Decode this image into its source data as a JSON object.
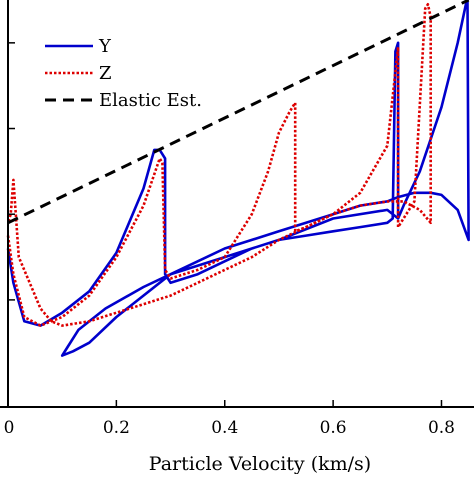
{
  "chart_data": {
    "type": "line",
    "title": "",
    "xlabel": "Particle Velocity (km/s)",
    "ylabel": "",
    "xlim": [
      0,
      0.86
    ],
    "ylim": [
      -0.5,
      9.0
    ],
    "xticks": [
      0,
      0.2,
      0.4,
      0.6,
      0.8
    ],
    "xtick_labels": [
      "0",
      "0.2",
      "0.4",
      "0.6",
      "0.8"
    ],
    "yticks": [
      2,
      4,
      6,
      8
    ],
    "ytick_labels": [
      "",
      "",
      "",
      ""
    ],
    "grid": false,
    "legend_position": "top-left",
    "series": [
      {
        "name": "Y",
        "color": "#0000cc",
        "style": "solid",
        "x": [
          0,
          0.01,
          0.03,
          0.06,
          0.1,
          0.15,
          0.2,
          0.25,
          0.27,
          0.28,
          0.285,
          0.29,
          0.29,
          0.3,
          0.35,
          0.4,
          0.45,
          0.5,
          0.55,
          0.6,
          0.65,
          0.7,
          0.71,
          0.715,
          0.72,
          0.72,
          0.73,
          0.76,
          0.8,
          0.83,
          0.845,
          0.848,
          0.85,
          0.85,
          0.83,
          0.8,
          0.78,
          0.75,
          0.72,
          0.7,
          0.65,
          0.6,
          0.5,
          0.4,
          0.3,
          0.2,
          0.15,
          0.12,
          0.1,
          0.11,
          0.13,
          0.18,
          0.25,
          0.3,
          0.4,
          0.5,
          0.6,
          0.7,
          0.72
        ],
        "y": [
          3.2,
          2.4,
          1.5,
          1.4,
          1.7,
          2.2,
          3.1,
          4.6,
          5.5,
          5.5,
          5.4,
          5.3,
          2.6,
          2.4,
          2.6,
          2.9,
          3.2,
          3.4,
          3.5,
          3.6,
          3.7,
          3.8,
          3.9,
          7.8,
          8.0,
          3.9,
          4.2,
          5.0,
          6.5,
          8.0,
          8.9,
          9.0,
          3.4,
          3.4,
          4.1,
          4.45,
          4.5,
          4.5,
          4.4,
          4.3,
          4.2,
          4.0,
          3.6,
          3.2,
          2.6,
          1.6,
          1.0,
          0.8,
          0.7,
          0.9,
          1.3,
          1.8,
          2.3,
          2.6,
          3.0,
          3.4,
          3.9,
          4.1,
          3.9
        ]
      },
      {
        "name": "Z",
        "color": "#dd0000",
        "style": "dotted",
        "x": [
          0,
          0.01,
          0.03,
          0.06,
          0.1,
          0.15,
          0.2,
          0.25,
          0.28,
          0.285,
          0.29,
          0.3,
          0.35,
          0.4,
          0.45,
          0.48,
          0.5,
          0.52,
          0.53,
          0.53,
          0.55,
          0.6,
          0.65,
          0.7,
          0.72,
          0.72,
          0.75,
          0.77,
          0.775,
          0.78,
          0.78,
          0.76,
          0.73,
          0.7,
          0.65,
          0.6,
          0.55,
          0.5,
          0.45,
          0.4,
          0.35,
          0.3,
          0.25,
          0.2,
          0.15,
          0.1,
          0.08,
          0.06,
          0.04,
          0.02,
          0.01,
          0.005,
          0
        ],
        "y": [
          3.5,
          2.6,
          1.6,
          1.4,
          1.6,
          2.1,
          3.0,
          4.2,
          5.3,
          5.2,
          2.7,
          2.5,
          2.7,
          3.0,
          4.0,
          5.0,
          5.9,
          6.4,
          6.6,
          3.6,
          3.7,
          4.0,
          4.5,
          5.6,
          7.9,
          3.7,
          4.3,
          8.8,
          8.9,
          8.6,
          3.8,
          4.1,
          4.3,
          4.3,
          4.2,
          4.0,
          3.7,
          3.4,
          3.0,
          2.7,
          2.4,
          2.1,
          1.9,
          1.7,
          1.5,
          1.4,
          1.5,
          1.8,
          2.4,
          3.0,
          4.8,
          4.0,
          3.8
        ]
      },
      {
        "name": "Elastic Est.",
        "color": "#000000",
        "style": "dashed",
        "x": [
          0,
          0.85
        ],
        "y": [
          3.8,
          9.0
        ]
      }
    ]
  }
}
